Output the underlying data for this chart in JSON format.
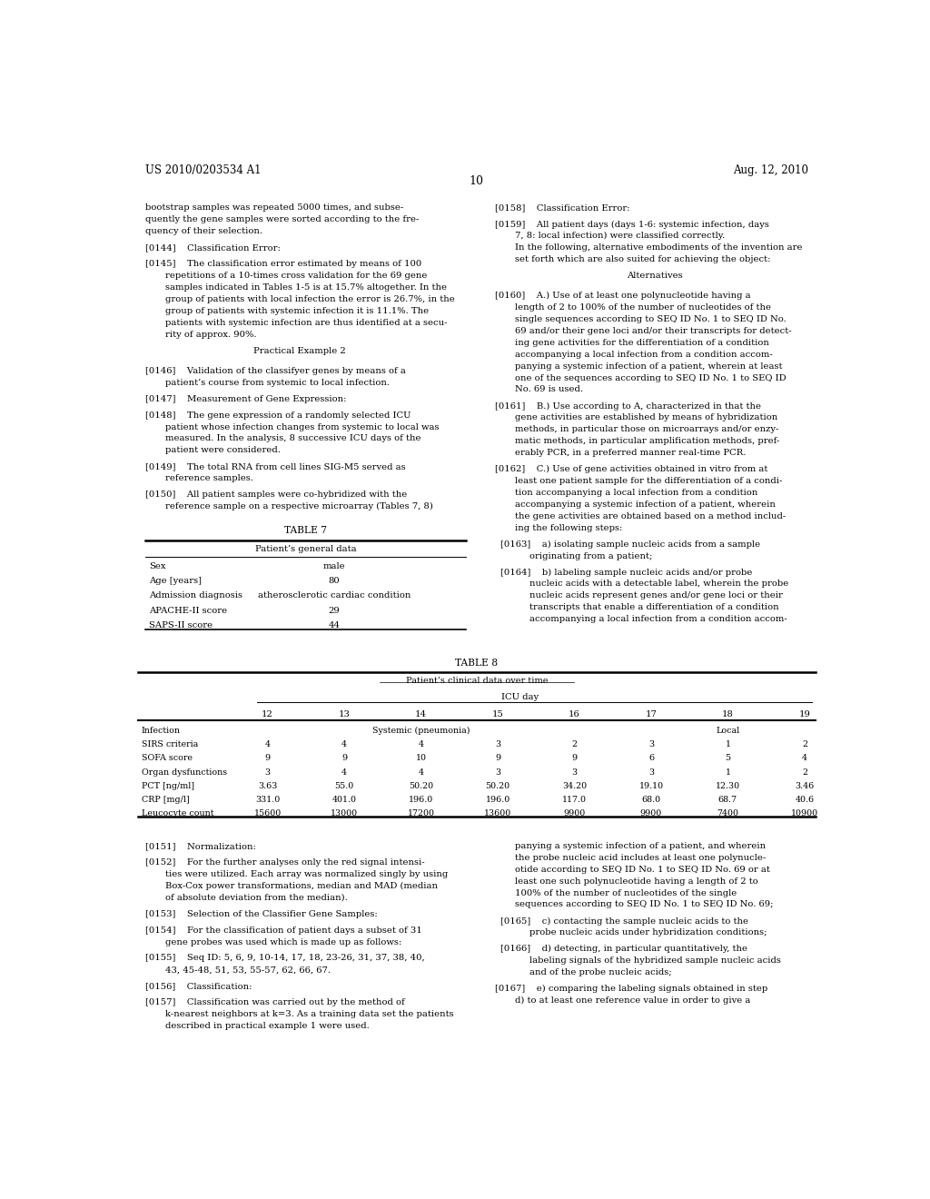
{
  "page_num": "10",
  "header_left": "US 2010/0203534 A1",
  "header_right": "Aug. 12, 2010",
  "bg_color": "#ffffff",
  "table7_title": "TABLE 7",
  "table7_subtitle": "Patient’s general data",
  "table7_rows": [
    [
      "Sex",
      "male"
    ],
    [
      "Age [years]",
      "80"
    ],
    [
      "Admission diagnosis",
      "atherosclerotic cardiac condition"
    ],
    [
      "APACHE-II score",
      "29"
    ],
    [
      "SAPS-II score",
      "44"
    ]
  ],
  "table8_title": "TABLE 8",
  "table8_subtitle": "Patient’s clinical data over time",
  "table8_header1": "ICU day",
  "table8_days": [
    "12",
    "13",
    "14",
    "15",
    "16",
    "17",
    "18",
    "19"
  ],
  "table8_rows": [
    [
      "Infection",
      "Systemic (pneumonia)",
      "",
      "",
      "",
      "",
      "Local",
      ""
    ],
    [
      "SIRS criteria",
      "4",
      "4",
      "4",
      "3",
      "2",
      "3",
      "1",
      "2"
    ],
    [
      "SOFA score",
      "9",
      "9",
      "10",
      "9",
      "9",
      "6",
      "5",
      "4"
    ],
    [
      "Organ dysfunctions",
      "3",
      "4",
      "4",
      "3",
      "3",
      "3",
      "1",
      "2"
    ],
    [
      "PCT [ng/ml]",
      "3.63",
      "55.0",
      "50.20",
      "50.20",
      "34.20",
      "19.10",
      "12.30",
      "3.46"
    ],
    [
      "CRP [mg/l]",
      "331.0",
      "401.0",
      "196.0",
      "196.0",
      "117.0",
      "68.0",
      "68.7",
      "40.6"
    ],
    [
      "Leucocyte count",
      "15600",
      "13000",
      "17200",
      "13600",
      "9900",
      "9900",
      "7400",
      "10900"
    ]
  ],
  "left_paragraphs": [
    {
      "tag": "",
      "text": "bootstrap samples was repeated 5000 times, and subse-\nquently the gene samples were sorted according to the fre-\nquency of their selection."
    },
    {
      "tag": "[0144]",
      "text": "Classification Error:"
    },
    {
      "tag": "[0145]",
      "text": "The classification error estimated by means of 100\nrepetitions of a 10-times cross validation for the 69 gene\nsamples indicated in Tables 1-5 is at 15.7% altogether. In the\ngroup of patients with local infection the error is 26.7%, in the\ngroup of patients with systemic infection it is 11.1%. The\npatients with systemic infection are thus identified at a secu-\nrity of approx. 90%."
    },
    {
      "tag": "center",
      "text": "Practical Example 2"
    },
    {
      "tag": "[0146]",
      "text": "Validation of the classifyer genes by means of a\npatient’s course from systemic to local infection."
    },
    {
      "tag": "[0147]",
      "text": "Measurement of Gene Expression:"
    },
    {
      "tag": "[0148]",
      "text": "The gene expression of a randomly selected ICU\npatient whose infection changes from systemic to local was\nmeasured. In the analysis, 8 successive ICU days of the\npatient were considered."
    },
    {
      "tag": "[0149]",
      "text": "The total RNA from cell lines SIG-M5 served as\nreference samples."
    },
    {
      "tag": "[0150]",
      "text": "All patient samples were co-hybridized with the\nreference sample on a respective microarray (Tables 7, 8)"
    }
  ],
  "right_paragraphs": [
    {
      "tag": "[0158]",
      "text": "Classification Error:",
      "indent": false
    },
    {
      "tag": "[0159]",
      "text": "All patient days (days 1-6: systemic infection, days\n7, 8: local infection) were classified correctly.\nIn the following, alternative embodiments of the invention are\nset forth which are also suited for achieving the object:",
      "indent": false
    },
    {
      "tag": "center",
      "text": "Alternatives",
      "indent": false
    },
    {
      "tag": "[0160]",
      "text": "A.) Use of at least one polynucleotide having a\nlength of 2 to 100% of the number of nucleotides of the\nsingle sequences according to SEQ ID No. 1 to SEQ ID No.\n69 and/or their gene loci and/or their transcripts for detect-\ning gene activities for the differentiation of a condition\naccompanying a local infection from a condition accom-\npanying a systemic infection of a patient, wherein at least\none of the sequences according to SEQ ID No. 1 to SEQ ID\nNo. 69 is used.",
      "indent": false
    },
    {
      "tag": "[0161]",
      "text": "B.) Use according to A, characterized in that the\ngene activities are established by means of hybridization\nmethods, in particular those on microarrays and/or enzy-\nmatic methods, in particular amplification methods, pref-\nerably PCR, in a preferred manner real-time PCR.",
      "indent": false
    },
    {
      "tag": "[0162]",
      "text": "C.) Use of gene activities obtained in vitro from at\nleast one patient sample for the differentiation of a condi-\ntion accompanying a local infection from a condition\naccompanying a systemic infection of a patient, wherein\nthe gene activities are obtained based on a method includ-\ning the following steps:",
      "indent": false
    },
    {
      "tag": "[0163]",
      "text": "a) isolating sample nucleic acids from a sample\noriginating from a patient;",
      "indent": true
    },
    {
      "tag": "[0164]",
      "text": "b) labeling sample nucleic acids and/or probe\nnucleic acids with a detectable label, wherein the probe\nnucleic acids represent genes and/or gene loci or their\ntranscripts that enable a differentiation of a condition\naccompanying a local infection from a condition accom-",
      "indent": true
    }
  ],
  "bottom_left_paragraphs": [
    {
      "tag": "[0151]",
      "text": "Normalization:",
      "indent": false
    },
    {
      "tag": "[0152]",
      "text": "For the further analyses only the red signal intensi-\nties were utilized. Each array was normalized singly by using\nBox-Cox power transformations, median and MAD (median\nof absolute deviation from the median).",
      "indent": false
    },
    {
      "tag": "[0153]",
      "text": "Selection of the Classifier Gene Samples:",
      "indent": false
    },
    {
      "tag": "[0154]",
      "text": "For the classification of patient days a subset of 31\ngene probes was used which is made up as follows:",
      "indent": false
    },
    {
      "tag": "[0155]",
      "text": "Seq ID: 5, 6, 9, 10-14, 17, 18, 23-26, 31, 37, 38, 40,\n43, 45-48, 51, 53, 55-57, 62, 66, 67.",
      "indent": false
    },
    {
      "tag": "[0156]",
      "text": "Classification:",
      "indent": false
    },
    {
      "tag": "[0157]",
      "text": "Classification was carried out by the method of\nk-nearest neighbors at k=3. As a training data set the patients\ndescribed in practical example 1 were used.",
      "indent": false
    }
  ],
  "bottom_right_paragraphs": [
    {
      "tag": "",
      "text": "panying a systemic infection of a patient, and wherein\nthe probe nucleic acid includes at least one polynucle-\notide according to SEQ ID No. 1 to SEQ ID No. 69 or at\nleast one such polynucleotide having a length of 2 to\n100% of the number of nucleotides of the single\nsequences according to SEQ ID No. 1 to SEQ ID No. 69;",
      "indent": false
    },
    {
      "tag": "[0165]",
      "text": "c) contacting the sample nucleic acids to the\nprobe nucleic acids under hybridization conditions;",
      "indent": true
    },
    {
      "tag": "[0166]",
      "text": "d) detecting, in particular quantitatively, the\nlabeling signals of the hybridized sample nucleic acids\nand of the probe nucleic acids;",
      "indent": true
    },
    {
      "tag": "[0167]",
      "text": "e) comparing the labeling signals obtained in step\nd) to at least one reference value in order to give a",
      "indent": false
    }
  ]
}
